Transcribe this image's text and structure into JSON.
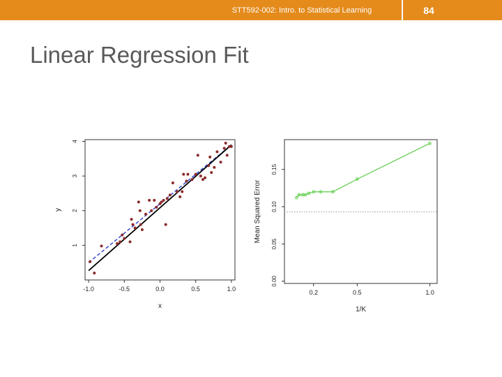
{
  "header": {
    "title": "STT592-002: Intro. to Statistical Learning",
    "page": "84"
  },
  "slide_title": "Linear Regression Fit",
  "colors": {
    "header": "#e48b1c",
    "points_left": "#8b2a2a",
    "fit_line": "#000000",
    "true_line": "#2b3fcf",
    "knn_error": "#5fcf4a",
    "linear_error": "#999999"
  },
  "chart_data": [
    {
      "type": "scatter",
      "xlabel": "x",
      "ylabel": "y",
      "xlim": [
        -1.05,
        1.05
      ],
      "ylim": [
        0.0,
        4.05
      ],
      "xticks": [
        "-1.0",
        "-0.5",
        "0.0",
        "0.5",
        "1.0"
      ],
      "xtick_values": [
        -1.0,
        -0.5,
        0.0,
        0.5,
        1.0
      ],
      "yticks": [
        "1",
        "2",
        "3",
        "4"
      ],
      "ytick_values": [
        1,
        2,
        3,
        4
      ],
      "grid": false,
      "fitted_line": {
        "x": [
          -1.0,
          1.0
        ],
        "y": [
          0.27,
          3.9
        ]
      },
      "true_line": {
        "x": [
          -1.0,
          1.0
        ],
        "y": [
          0.5,
          3.9
        ],
        "style": "dashed"
      },
      "points": [
        [
          -0.98,
          0.53
        ],
        [
          -0.92,
          0.2
        ],
        [
          -0.82,
          0.98
        ],
        [
          -0.6,
          1.05
        ],
        [
          -0.56,
          1.1
        ],
        [
          -0.53,
          1.3
        ],
        [
          -0.5,
          1.2
        ],
        [
          -0.42,
          1.1
        ],
        [
          -0.4,
          1.75
        ],
        [
          -0.38,
          1.6
        ],
        [
          -0.35,
          1.5
        ],
        [
          -0.3,
          2.25
        ],
        [
          -0.28,
          2.0
        ],
        [
          -0.27,
          1.6
        ],
        [
          -0.25,
          1.45
        ],
        [
          -0.2,
          1.9
        ],
        [
          -0.15,
          2.3
        ],
        [
          -0.12,
          2.0
        ],
        [
          -0.08,
          2.3
        ],
        [
          -0.05,
          2.1
        ],
        [
          0.0,
          2.2
        ],
        [
          0.02,
          2.25
        ],
        [
          0.05,
          2.3
        ],
        [
          0.08,
          1.6
        ],
        [
          0.1,
          2.35
        ],
        [
          0.14,
          2.45
        ],
        [
          0.18,
          2.8
        ],
        [
          0.24,
          2.55
        ],
        [
          0.28,
          2.4
        ],
        [
          0.31,
          2.55
        ],
        [
          0.33,
          3.05
        ],
        [
          0.37,
          2.85
        ],
        [
          0.39,
          3.05
        ],
        [
          0.45,
          2.9
        ],
        [
          0.5,
          3.05
        ],
        [
          0.53,
          3.6
        ],
        [
          0.57,
          3.0
        ],
        [
          0.6,
          2.9
        ],
        [
          0.63,
          2.95
        ],
        [
          0.68,
          3.3
        ],
        [
          0.7,
          3.55
        ],
        [
          0.72,
          3.1
        ],
        [
          0.76,
          3.25
        ],
        [
          0.8,
          3.7
        ],
        [
          0.85,
          3.4
        ],
        [
          0.9,
          3.8
        ],
        [
          0.92,
          3.95
        ],
        [
          0.94,
          3.6
        ],
        [
          0.97,
          3.85
        ],
        [
          1.0,
          3.85
        ]
      ]
    },
    {
      "type": "line",
      "xlabel": "1/K",
      "ylabel": "Mean Squared Error",
      "xlim": [
        0.0,
        1.05
      ],
      "ylim": [
        -0.003,
        0.19
      ],
      "xticks": [
        "0.2",
        "0.5",
        "1.0"
      ],
      "xtick_values": [
        0.2,
        0.5,
        1.0
      ],
      "yticks": [
        "0.00",
        "0.05",
        "0.10",
        "0.15"
      ],
      "ytick_values": [
        0.0,
        0.05,
        0.1,
        0.15
      ],
      "grid": false,
      "series": [
        {
          "x": [
            0.083,
            0.1,
            0.125,
            0.143,
            0.167,
            0.2,
            0.25,
            0.333,
            0.5,
            1.0
          ],
          "y": [
            0.112,
            0.116,
            0.116,
            0.116,
            0.118,
            0.12,
            0.12,
            0.12,
            0.137,
            0.185
          ]
        }
      ],
      "reference_line": {
        "y": 0.093,
        "style": "dotted"
      }
    }
  ]
}
